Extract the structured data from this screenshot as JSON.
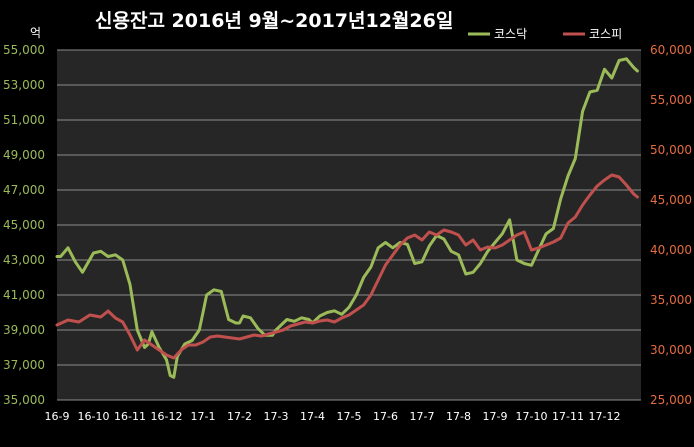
{
  "chart_data": {
    "type": "line",
    "title": "신용잔고 2016년 9월~2017년12월26일",
    "y_left_unit": "억",
    "y_left": {
      "min": 35000,
      "max": 55000,
      "step": 2000,
      "ticks": [
        "35,000",
        "37,000",
        "39,000",
        "41,000",
        "43,000",
        "45,000",
        "47,000",
        "49,000",
        "51,000",
        "53,000",
        "55,000"
      ]
    },
    "y_right": {
      "min": 25000,
      "max": 60000,
      "step": 5000,
      "ticks": [
        "25,000",
        "30,000",
        "35,000",
        "40,000",
        "45,000",
        "50,000",
        "55,000",
        "60,000"
      ]
    },
    "x_ticks": [
      "16-9",
      "16-10",
      "16-11",
      "16-12",
      "17-1",
      "17-2",
      "17-3",
      "17-4",
      "17-5",
      "17-6",
      "17-7",
      "17-8",
      "17-9",
      "17-10",
      "17-11",
      "17-12"
    ],
    "legend_position": "top-right",
    "grid": true,
    "series": [
      {
        "name": "코스닥",
        "axis": "left",
        "color": "#9bbb59",
        "x": [
          0,
          0.1,
          0.3,
          0.5,
          0.7,
          1.0,
          1.2,
          1.4,
          1.6,
          1.8,
          2.0,
          2.2,
          2.4,
          2.5,
          2.6,
          2.8,
          3.0,
          3.1,
          3.2,
          3.3,
          3.5,
          3.7,
          3.9,
          4.0,
          4.1,
          4.3,
          4.5,
          4.7,
          4.9,
          5.0,
          5.1,
          5.3,
          5.5,
          5.7,
          5.9,
          6.0,
          6.1,
          6.3,
          6.5,
          6.7,
          6.9,
          7.0,
          7.2,
          7.4,
          7.6,
          7.8,
          8.0,
          8.2,
          8.4,
          8.6,
          8.8,
          9.0,
          9.2,
          9.4,
          9.6,
          9.8,
          10.0,
          10.2,
          10.4,
          10.6,
          10.8,
          11.0,
          11.2,
          11.4,
          11.6,
          11.8,
          12.0,
          12.2,
          12.4,
          12.6,
          12.8,
          13.0,
          13.2,
          13.4,
          13.6,
          13.8,
          14.0,
          14.2,
          14.4,
          14.6,
          14.8,
          15.0,
          15.2,
          15.4,
          15.6,
          15.8,
          15.9
        ],
        "values": [
          43200,
          43200,
          43700,
          42900,
          42300,
          43400,
          43500,
          43200,
          43300,
          43000,
          41600,
          39000,
          38000,
          38200,
          38900,
          38000,
          37300,
          36400,
          36300,
          37500,
          38200,
          38400,
          39000,
          40000,
          41000,
          41300,
          41200,
          39600,
          39400,
          39400,
          39800,
          39700,
          39100,
          38700,
          38700,
          39000,
          39200,
          39600,
          39500,
          39700,
          39600,
          39400,
          39800,
          40000,
          40100,
          39900,
          40300,
          41000,
          42000,
          42600,
          43700,
          44000,
          43700,
          44000,
          43900,
          42800,
          42900,
          43800,
          44400,
          44200,
          43500,
          43300,
          42200,
          42300,
          42800,
          43500,
          44000,
          44500,
          45300,
          43000,
          42800,
          42700,
          43600,
          44500,
          44800,
          46500,
          47800,
          48800,
          51500,
          52600,
          52700,
          53900,
          53400,
          54400,
          54500,
          54000,
          53800
        ]
      },
      {
        "name": "코스피",
        "axis": "right",
        "color": "#c0504d",
        "x": [
          0,
          0.3,
          0.6,
          0.9,
          1.2,
          1.4,
          1.6,
          1.8,
          2.0,
          2.2,
          2.4,
          2.6,
          2.8,
          3.0,
          3.2,
          3.4,
          3.6,
          3.8,
          4.0,
          4.2,
          4.4,
          4.6,
          4.8,
          5.0,
          5.2,
          5.4,
          5.6,
          5.8,
          6.0,
          6.2,
          6.4,
          6.6,
          6.8,
          7.0,
          7.2,
          7.4,
          7.6,
          7.8,
          8.0,
          8.2,
          8.4,
          8.6,
          8.8,
          9.0,
          9.2,
          9.4,
          9.6,
          9.8,
          10.0,
          10.2,
          10.4,
          10.6,
          10.8,
          11.0,
          11.2,
          11.4,
          11.6,
          11.8,
          12.0,
          12.2,
          12.4,
          12.6,
          12.8,
          13.0,
          13.2,
          13.4,
          13.6,
          13.8,
          14.0,
          14.2,
          14.4,
          14.6,
          14.8,
          15.0,
          15.2,
          15.4,
          15.6,
          15.8,
          15.9
        ],
        "values": [
          32500,
          33000,
          32800,
          33500,
          33300,
          33900,
          33200,
          32800,
          31500,
          30000,
          31000,
          30500,
          30000,
          29500,
          29200,
          30000,
          30500,
          30500,
          30800,
          31300,
          31400,
          31300,
          31200,
          31100,
          31300,
          31500,
          31400,
          31600,
          31800,
          32000,
          32400,
          32600,
          32800,
          32700,
          32900,
          33000,
          32800,
          33200,
          33500,
          34000,
          34500,
          35500,
          37000,
          38500,
          39500,
          40500,
          41200,
          41500,
          41000,
          41800,
          41500,
          42000,
          41800,
          41500,
          40500,
          41000,
          40000,
          40300,
          40200,
          40500,
          41000,
          41500,
          41800,
          40000,
          40200,
          40500,
          40800,
          41200,
          42700,
          43300,
          44500,
          45500,
          46400,
          47000,
          47500,
          47300,
          46500,
          45600,
          45300
        ]
      }
    ]
  }
}
